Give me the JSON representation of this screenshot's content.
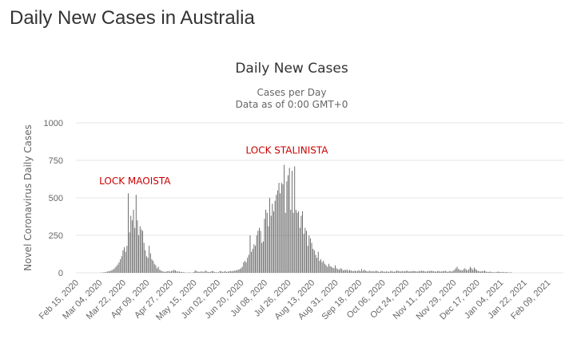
{
  "page": {
    "title": "Daily New Cases in Australia"
  },
  "colors": {
    "bar": "#606060",
    "annotation": "#cc0000",
    "grid": "#e6e6e6",
    "text": "#333333",
    "axis_text": "#666666"
  },
  "chart_data": {
    "type": "bar",
    "title": "Daily New Cases",
    "subtitle_lines": [
      "Cases per Day",
      "Data as of 0:00 GMT+0"
    ],
    "xlabel": "",
    "ylabel": "Novel Coronavirus Daily Cases",
    "ylim": [
      0,
      1000
    ],
    "yticks": [
      0,
      250,
      500,
      750,
      1000
    ],
    "x_start": "2020-02-15",
    "x_end": "2021-02-21",
    "xtick_labels": [
      "Feb 15, 2020",
      "Mar 04, 2020",
      "Mar 22, 2020",
      "Apr 09, 2020",
      "Apr 27, 2020",
      "May 15, 2020",
      "Jun 02, 2020",
      "Jun 20, 2020",
      "Jul 08, 2020",
      "Jul 26, 2020",
      "Aug 13, 2020",
      "Aug 31, 2020",
      "Sep 18, 2020",
      "Oct 06, 2020",
      "Oct 24, 2020",
      "Nov 11, 2020",
      "Nov 29, 2020",
      "Dec 17, 2020",
      "Jan 04, 2021",
      "Jan 22, 2021",
      "Feb 09, 2021"
    ],
    "series": [
      {
        "values": [
          0,
          0,
          0,
          0,
          0,
          0,
          0,
          0,
          0,
          0,
          0,
          0,
          0,
          0,
          0,
          0,
          0,
          0,
          0,
          2,
          1,
          3,
          4,
          5,
          8,
          10,
          12,
          15,
          20,
          25,
          35,
          45,
          55,
          70,
          90,
          110,
          150,
          170,
          140,
          180,
          530,
          270,
          380,
          350,
          420,
          300,
          520,
          350,
          250,
          310,
          290,
          280,
          200,
          150,
          110,
          100,
          180,
          130,
          90,
          80,
          60,
          50,
          30,
          40,
          20,
          15,
          10,
          8,
          6,
          8,
          10,
          12,
          8,
          12,
          14,
          20,
          15,
          10,
          8,
          9,
          6,
          5,
          4,
          3,
          2,
          1,
          3,
          2,
          1,
          2,
          5,
          15,
          12,
          8,
          6,
          7,
          10,
          6,
          8,
          15,
          9,
          6,
          5,
          8,
          12,
          10,
          5,
          4,
          3,
          4,
          12,
          10,
          6,
          8,
          12,
          6,
          8,
          10,
          12,
          10,
          12,
          14,
          15,
          18,
          20,
          25,
          30,
          40,
          70,
          80,
          70,
          100,
          120,
          250,
          140,
          160,
          190,
          180,
          250,
          280,
          300,
          280,
          200,
          210,
          360,
          420,
          400,
          310,
          500,
          380,
          460,
          410,
          480,
          520,
          550,
          600,
          530,
          600,
          590,
          720,
          400,
          610,
          650,
          700,
          420,
          680,
          400,
          710,
          420,
          400,
          410,
          300,
          380,
          410,
          260,
          300,
          280,
          180,
          250,
          230,
          200,
          160,
          150,
          120,
          100,
          140,
          80,
          90,
          70,
          80,
          60,
          50,
          40,
          60,
          45,
          40,
          35,
          30,
          50,
          30,
          25,
          20,
          30,
          25,
          15,
          20,
          18,
          22,
          12,
          20,
          15,
          12,
          10,
          15,
          10,
          12,
          18,
          10,
          25,
          12,
          20,
          15,
          10,
          8,
          14,
          10,
          9,
          12,
          8,
          15,
          10,
          8,
          6,
          12,
          10,
          8,
          7,
          9,
          8,
          6,
          10,
          12,
          8,
          7,
          9,
          15,
          12,
          10,
          8,
          12,
          9,
          10,
          12,
          14,
          8,
          10,
          9,
          11,
          12,
          10,
          9,
          8,
          12,
          10,
          15,
          12,
          10,
          8,
          9,
          12,
          10,
          14,
          12,
          10,
          9,
          8,
          10,
          12,
          8,
          9,
          10,
          11,
          14,
          8,
          6,
          12,
          10,
          8,
          14,
          20,
          30,
          40,
          25,
          20,
          18,
          15,
          25,
          30,
          20,
          15,
          25,
          40,
          30,
          20,
          35,
          25,
          18,
          12,
          10,
          8,
          12,
          10,
          15,
          8,
          6,
          5,
          8,
          6,
          4,
          5,
          3,
          5,
          8,
          6,
          5,
          4,
          6,
          3,
          5,
          4,
          3,
          2,
          4
        ]
      }
    ],
    "annotations": [
      {
        "text": "LOCK MAOISTA",
        "date": "2020-03-31",
        "y": 590
      },
      {
        "text": "LOCK STALINISTA",
        "date": "2020-07-25",
        "y": 795
      }
    ]
  }
}
